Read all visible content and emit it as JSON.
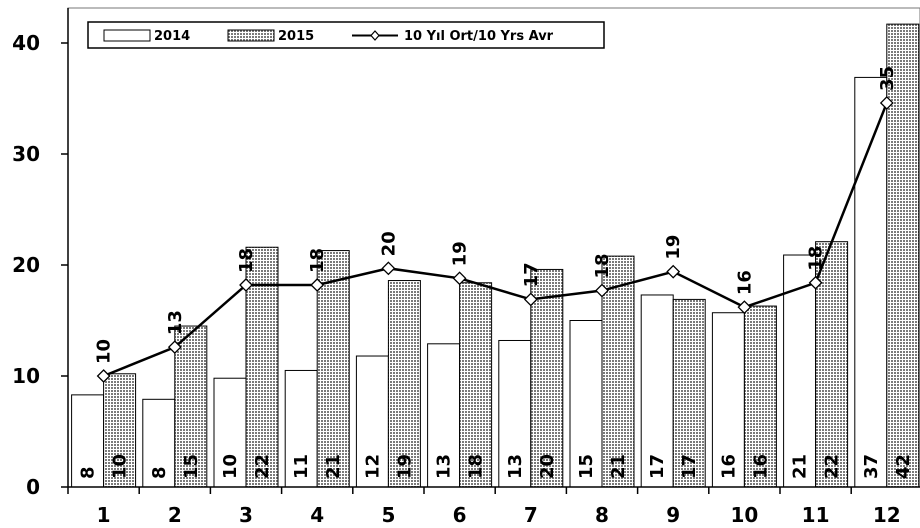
{
  "chart_data": {
    "type": "bar",
    "categories": [
      "1",
      "2",
      "3",
      "4",
      "5",
      "6",
      "7",
      "8",
      "9",
      "10",
      "11",
      "12"
    ],
    "series": [
      {
        "name": "2014",
        "kind": "bar",
        "values": [
          8.3,
          7.9,
          9.8,
          10.5,
          11.8,
          12.9,
          13.2,
          15.0,
          17.3,
          15.7,
          20.9,
          36.9
        ],
        "labels": [
          "8",
          "8",
          "10",
          "11",
          "12",
          "13",
          "13",
          "15",
          "17",
          "16",
          "21",
          "37"
        ]
      },
      {
        "name": "2015",
        "kind": "bar",
        "values": [
          10.2,
          14.5,
          21.6,
          21.3,
          18.6,
          18.4,
          19.6,
          20.8,
          16.9,
          16.3,
          22.1,
          41.7
        ],
        "labels": [
          "10",
          "15",
          "22",
          "21",
          "19",
          "18",
          "20",
          "21",
          "17",
          "16",
          "22",
          "42"
        ]
      },
      {
        "name": "10 Yıl Ort/10 Yrs Avr",
        "kind": "line",
        "values": [
          10.0,
          12.6,
          18.2,
          18.2,
          19.7,
          18.8,
          16.9,
          17.7,
          19.4,
          16.2,
          18.4,
          34.6
        ],
        "labels": [
          "10",
          "13",
          "18",
          "18",
          "20",
          "19",
          "17",
          "18",
          "19",
          "16",
          "18",
          "35"
        ]
      }
    ],
    "yticks": [
      "0",
      "10",
      "20",
      "30",
      "40"
    ],
    "ylim": [
      0,
      43
    ],
    "title": "",
    "xlabel": "",
    "ylabel": "",
    "legend_position": "top-left",
    "colors": {
      "bar2014": "#ffffff",
      "bar2015": "#c8c8c8",
      "line": "#000000",
      "marker_fill": "#ffffff"
    }
  }
}
